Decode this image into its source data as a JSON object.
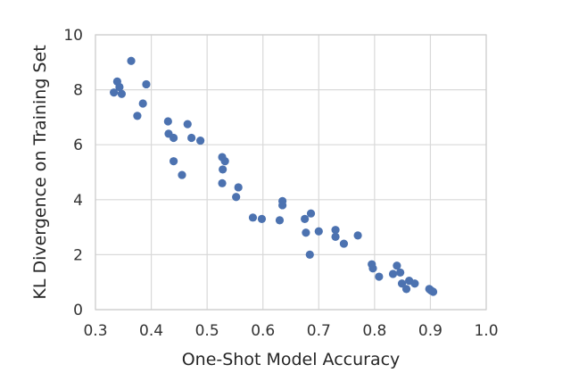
{
  "chart_data": {
    "type": "scatter",
    "xlabel": "One-Shot Model Accuracy",
    "ylabel": "KL Divergence on Training Set",
    "xlim": [
      0.3,
      1.0
    ],
    "ylim": [
      0,
      10
    ],
    "x_ticks": [
      "0.3",
      "0.4",
      "0.5",
      "0.6",
      "0.7",
      "0.8",
      "0.9",
      "1.0"
    ],
    "y_ticks": [
      "0",
      "2",
      "4",
      "6",
      "8",
      "10"
    ],
    "grid": true,
    "color": "#4c72b0",
    "points": [
      {
        "x": 0.333,
        "y": 7.9
      },
      {
        "x": 0.339,
        "y": 8.3
      },
      {
        "x": 0.343,
        "y": 8.1
      },
      {
        "x": 0.347,
        "y": 7.85
      },
      {
        "x": 0.364,
        "y": 9.05
      },
      {
        "x": 0.375,
        "y": 7.05
      },
      {
        "x": 0.385,
        "y": 7.5
      },
      {
        "x": 0.391,
        "y": 8.2
      },
      {
        "x": 0.43,
        "y": 6.85
      },
      {
        "x": 0.431,
        "y": 6.4
      },
      {
        "x": 0.44,
        "y": 6.25
      },
      {
        "x": 0.44,
        "y": 5.4
      },
      {
        "x": 0.455,
        "y": 4.9
      },
      {
        "x": 0.465,
        "y": 6.75
      },
      {
        "x": 0.472,
        "y": 6.25
      },
      {
        "x": 0.488,
        "y": 6.15
      },
      {
        "x": 0.527,
        "y": 5.55
      },
      {
        "x": 0.532,
        "y": 5.4
      },
      {
        "x": 0.528,
        "y": 5.1
      },
      {
        "x": 0.527,
        "y": 4.6
      },
      {
        "x": 0.556,
        "y": 4.45
      },
      {
        "x": 0.552,
        "y": 4.1
      },
      {
        "x": 0.582,
        "y": 3.35
      },
      {
        "x": 0.598,
        "y": 3.3
      },
      {
        "x": 0.63,
        "y": 3.25
      },
      {
        "x": 0.635,
        "y": 3.95
      },
      {
        "x": 0.635,
        "y": 3.8
      },
      {
        "x": 0.675,
        "y": 3.3
      },
      {
        "x": 0.686,
        "y": 3.5
      },
      {
        "x": 0.677,
        "y": 2.8
      },
      {
        "x": 0.7,
        "y": 2.85
      },
      {
        "x": 0.684,
        "y": 2.0
      },
      {
        "x": 0.73,
        "y": 2.9
      },
      {
        "x": 0.73,
        "y": 2.65
      },
      {
        "x": 0.745,
        "y": 2.4
      },
      {
        "x": 0.77,
        "y": 2.7
      },
      {
        "x": 0.795,
        "y": 1.65
      },
      {
        "x": 0.797,
        "y": 1.5
      },
      {
        "x": 0.808,
        "y": 1.2
      },
      {
        "x": 0.833,
        "y": 1.3
      },
      {
        "x": 0.84,
        "y": 1.6
      },
      {
        "x": 0.846,
        "y": 1.35
      },
      {
        "x": 0.849,
        "y": 0.95
      },
      {
        "x": 0.857,
        "y": 0.75
      },
      {
        "x": 0.862,
        "y": 1.05
      },
      {
        "x": 0.872,
        "y": 0.95
      },
      {
        "x": 0.898,
        "y": 0.75
      },
      {
        "x": 0.905,
        "y": 0.65
      },
      {
        "x": 0.901,
        "y": 0.7
      }
    ]
  }
}
